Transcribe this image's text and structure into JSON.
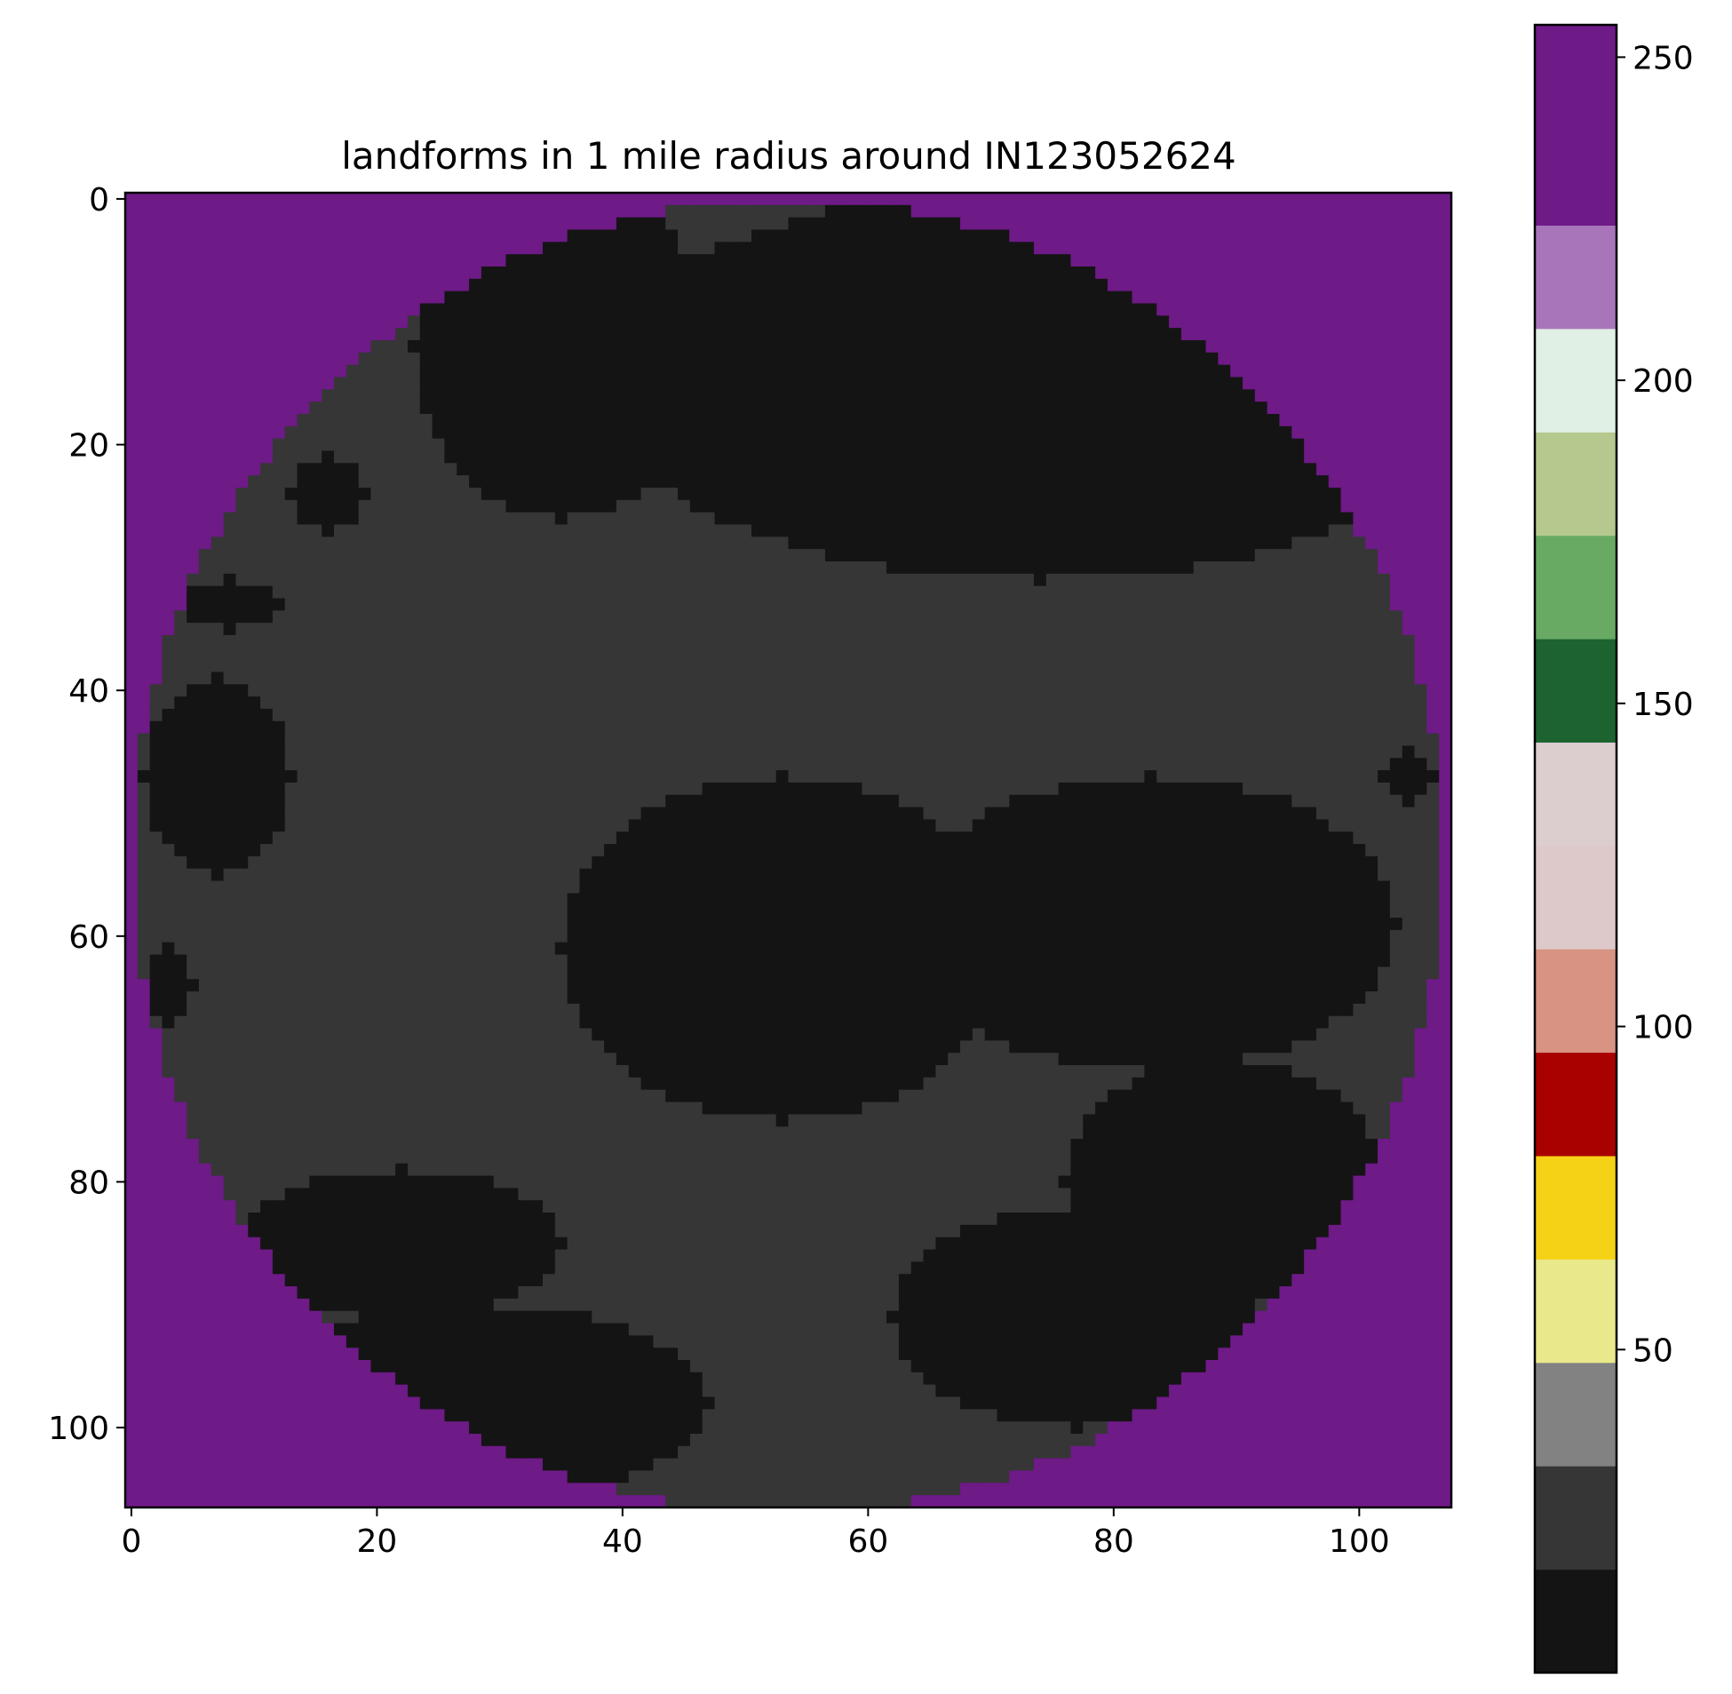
{
  "chart_data": {
    "type": "heatmap",
    "title": "landforms in 1 mile radius around IN123052624",
    "xlabel": "",
    "ylabel": "",
    "grid": false,
    "xlim": [
      -0.5,
      107.5
    ],
    "ylim": [
      106.5,
      -0.5
    ],
    "x_ticks": [
      0,
      20,
      40,
      60,
      80,
      100
    ],
    "y_ticks": [
      0,
      20,
      40,
      60,
      80,
      100
    ],
    "grid_size": {
      "rows": 107,
      "cols": 108
    },
    "circle": {
      "center": [
        53.5,
        53.5
      ],
      "radius": 53.5,
      "outside_value": 255
    },
    "base_value": 30,
    "patch_value": 15,
    "patches": [
      {
        "shape": "ellipse",
        "center_xy": [
          74,
          15
        ],
        "radius_xy": [
          36,
          16
        ]
      },
      {
        "shape": "ellipse",
        "center_xy": [
          35,
          12
        ],
        "radius_xy": [
          12,
          14
        ]
      },
      {
        "shape": "ellipse",
        "center_xy": [
          16,
          24
        ],
        "radius_xy": [
          3,
          3
        ]
      },
      {
        "shape": "ellipse",
        "center_xy": [
          8,
          33
        ],
        "radius_xy": [
          4,
          2
        ]
      },
      {
        "shape": "ellipse",
        "center_xy": [
          7,
          47
        ],
        "radius_xy": [
          6,
          8
        ]
      },
      {
        "shape": "ellipse",
        "center_xy": [
          3,
          64
        ],
        "radius_xy": [
          2,
          3
        ]
      },
      {
        "shape": "ellipse",
        "center_xy": [
          53,
          61
        ],
        "radius_xy": [
          18,
          14
        ]
      },
      {
        "shape": "ellipse",
        "center_xy": [
          83,
          59
        ],
        "radius_xy": [
          20,
          12
        ]
      },
      {
        "shape": "ellipse",
        "center_xy": [
          89,
          80
        ],
        "radius_xy": [
          13,
          10
        ]
      },
      {
        "shape": "ellipse",
        "center_xy": [
          77,
          91
        ],
        "radius_xy": [
          15,
          9
        ]
      },
      {
        "shape": "ellipse",
        "center_xy": [
          28,
          98
        ],
        "radius_xy": [
          19,
          8
        ]
      },
      {
        "shape": "ellipse",
        "center_xy": [
          22,
          85
        ],
        "radius_xy": [
          13,
          6
        ]
      },
      {
        "shape": "ellipse",
        "center_xy": [
          104,
          47
        ],
        "radius_xy": [
          2,
          2
        ]
      }
    ],
    "colorbar": {
      "ticks": [
        50,
        100,
        150,
        200,
        250
      ],
      "range": [
        0,
        255
      ],
      "bands": [
        {
          "from": 0,
          "to": 16,
          "color": "#141414"
        },
        {
          "from": 16,
          "to": 32,
          "color": "#363636"
        },
        {
          "from": 32,
          "to": 48,
          "color": "#828282"
        },
        {
          "from": 48,
          "to": 64,
          "color": "#e9e98c"
        },
        {
          "from": 64,
          "to": 80,
          "color": "#f5d215"
        },
        {
          "from": 80,
          "to": 96,
          "color": "#a90000"
        },
        {
          "from": 96,
          "to": 112,
          "color": "#d89382"
        },
        {
          "from": 112,
          "to": 128,
          "color": "#ddc9c9"
        },
        {
          "from": 128,
          "to": 144,
          "color": "#dccdce"
        },
        {
          "from": 144,
          "to": 160,
          "color": "#1c6330"
        },
        {
          "from": 160,
          "to": 176,
          "color": "#68aa63"
        },
        {
          "from": 176,
          "to": 192,
          "color": "#b5c98e"
        },
        {
          "from": 192,
          "to": 208,
          "color": "#e1f0e5"
        },
        {
          "from": 208,
          "to": 224,
          "color": "#a975ba"
        },
        {
          "from": 224,
          "to": 255,
          "color": "#6e1a87"
        }
      ]
    }
  }
}
